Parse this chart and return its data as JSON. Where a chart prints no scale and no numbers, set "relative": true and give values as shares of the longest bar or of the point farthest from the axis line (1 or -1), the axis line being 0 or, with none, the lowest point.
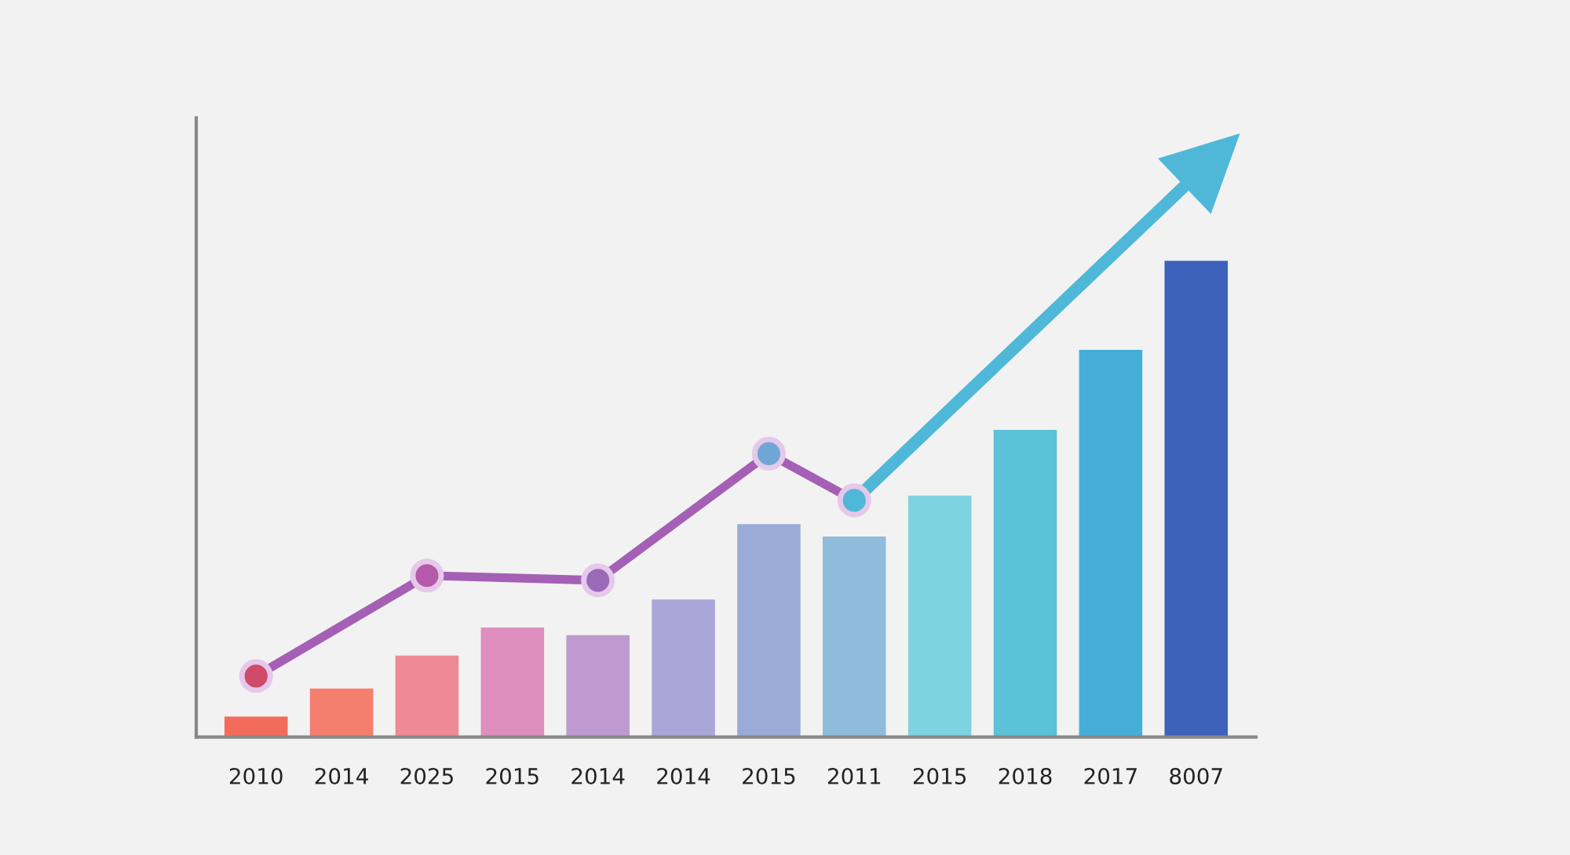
{
  "chart_data": {
    "type": "bar",
    "relative": true,
    "grid": false,
    "legend": false,
    "categories": [
      "2010",
      "2014",
      "2025",
      "2015",
      "2014",
      "2014",
      "2015",
      "2011",
      "2015",
      "2018",
      "2017",
      "8007"
    ],
    "values": [
      0.043,
      0.102,
      0.171,
      0.23,
      0.214,
      0.289,
      0.447,
      0.421,
      0.507,
      0.645,
      0.813,
      1
    ],
    "colors": [
      "#f26b5b",
      "#f57f6e",
      "#ee8a94",
      "#de8fbd",
      "#bf9ad0",
      "#aaa6da",
      "#99abd6",
      "#8fbcdc",
      "#7ed3e0",
      "#5bc2d8",
      "#45aed8",
      "#3d62bc"
    ],
    "series": [
      {
        "type": "line",
        "marker": "circle",
        "line_style": "solid",
        "color": "#a55fb5",
        "values": [
          0.128,
          null,
          0.339,
          null,
          0.329,
          null,
          0.595,
          0.497,
          null,
          null,
          null,
          null
        ],
        "colors": [
          "#d04a6a",
          null,
          "#b45aa8",
          null,
          "#9a6ab8",
          null,
          "#6fa6d6",
          "#4fb8d8",
          null,
          null,
          null,
          null
        ]
      }
    ]
  }
}
